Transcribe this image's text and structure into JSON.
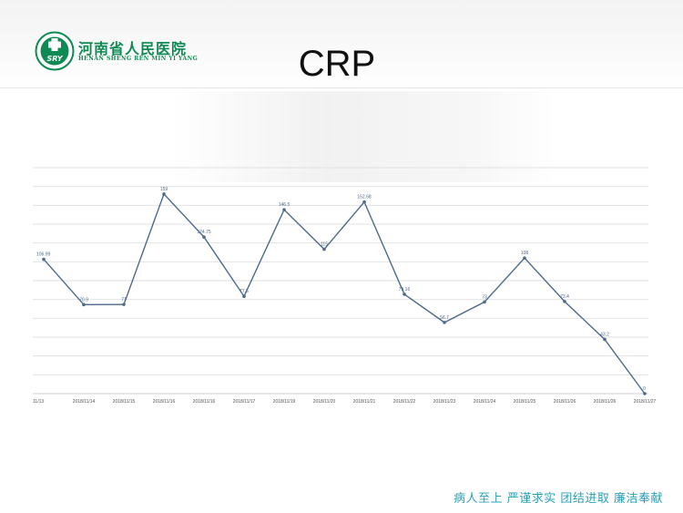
{
  "header": {
    "hospital_name_cn": "河南省人民医院",
    "hospital_name_en": "HENAN SHENG REN MIN YI YANG",
    "logo_mark": "SRY",
    "title": "CRP"
  },
  "footer": {
    "slogan": "病人至上   严谨求实  团结进取  廉洁奉献"
  },
  "colors": {
    "line": "#4d6a8a",
    "grid": "#e2e2e2",
    "logo_green": "#0f8a52",
    "slogan_blue": "#2aa0b6"
  },
  "chart_data": {
    "type": "line",
    "title": "",
    "xlabel": "",
    "ylabel": "",
    "ylim": [
      0,
      180
    ],
    "grid": true,
    "categories": [
      "11/13",
      "2018/11/14",
      "2018/11/15",
      "2018/11/16",
      "2018/11/16",
      "2018/11/17",
      "2018/11/19",
      "2018/11/20",
      "2018/11/21",
      "2018/11/22",
      "2018/11/23",
      "2018/11/24",
      "2018/11/25",
      "2018/11/26",
      "2018/11/26",
      "2018/11/27"
    ],
    "series": [
      {
        "values": [
          106.99,
          70.9,
          71,
          159,
          124.75,
          77.5,
          146.5,
          115,
          152.68,
          79.16,
          56.7,
          73,
          108,
          73.4,
          43.2,
          0
        ],
        "labels": [
          "106.99",
          "70.9",
          "71",
          "159",
          "124.75",
          "77.5",
          "146.5",
          "115",
          "152.68",
          "79.16",
          "56.7",
          "73",
          "108",
          "73.4",
          "43.2",
          "0"
        ]
      }
    ]
  }
}
